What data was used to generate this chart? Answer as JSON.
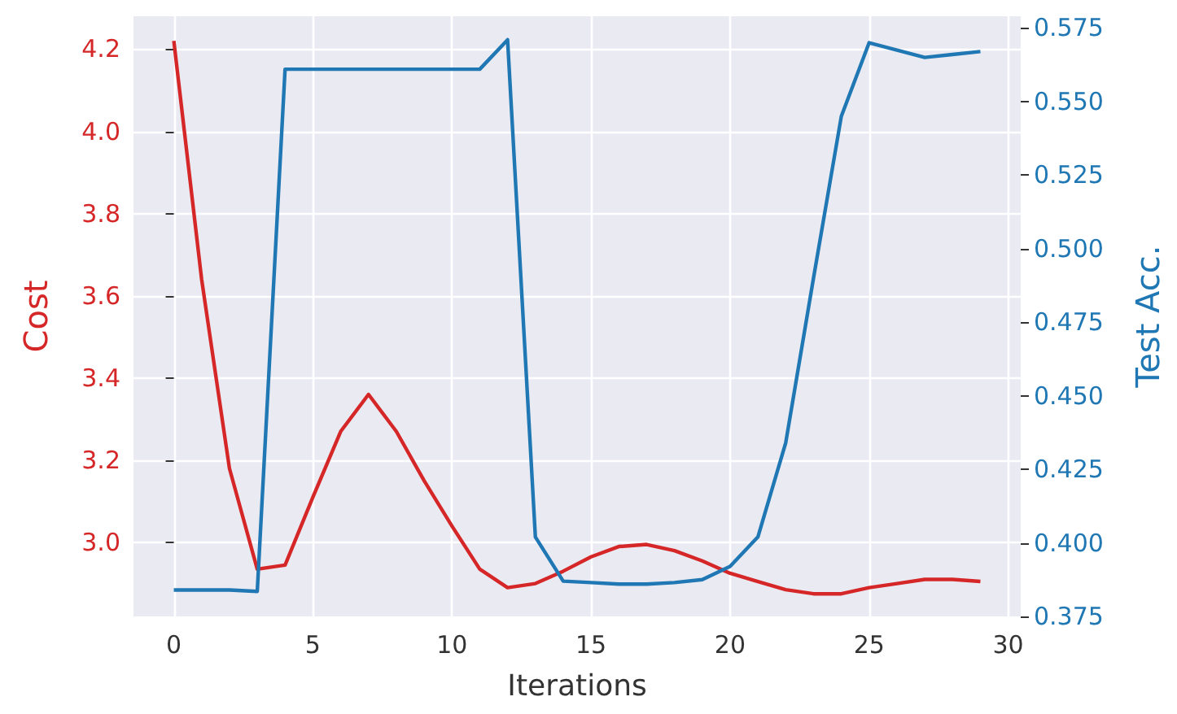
{
  "chart_data": {
    "type": "line",
    "xlabel": "Iterations",
    "ylabel": "Cost",
    "y2label": "Test Acc.",
    "x": [
      0,
      1,
      2,
      3,
      4,
      5,
      6,
      7,
      8,
      9,
      10,
      11,
      12,
      13,
      14,
      15,
      16,
      17,
      18,
      19,
      20,
      21,
      22,
      23,
      24,
      25,
      26,
      27,
      28,
      29
    ],
    "series": [
      {
        "color": "#d62728",
        "values": [
          4.22,
          3.64,
          3.18,
          2.935,
          2.945,
          3.11,
          3.27,
          3.36,
          3.27,
          3.15,
          3.04,
          2.935,
          2.89,
          2.9,
          2.93,
          2.965,
          2.99,
          2.995,
          2.98,
          2.955,
          2.925,
          2.905,
          2.885,
          2.875,
          2.875,
          2.89,
          2.9,
          2.91,
          2.91,
          2.905
        ]
      },
      {
        "color": "#1f77b4",
        "axis": "y2",
        "values": [
          0.384,
          0.384,
          0.384,
          0.3835,
          0.561,
          0.561,
          0.561,
          0.561,
          0.561,
          0.561,
          0.561,
          0.561,
          0.571,
          0.402,
          0.387,
          0.3865,
          0.386,
          0.386,
          0.3865,
          0.3875,
          0.392,
          0.402,
          0.434,
          0.49,
          0.545,
          0.57,
          0.5675,
          0.565,
          0.566,
          0.567
        ]
      }
    ],
    "xlim": [
      -1.45,
      30.45
    ],
    "xticks": [
      0,
      5,
      10,
      15,
      20,
      25,
      30
    ],
    "ylim": [
      2.82,
      4.28
    ],
    "yticks": [
      {
        "value": 3,
        "label": "3.0"
      },
      3.2,
      3.4,
      3.6,
      3.8,
      {
        "value": 4,
        "label": "4.0"
      },
      4.2
    ],
    "y2lim": [
      0.375,
      0.579
    ],
    "y2ticks": [
      0.375,
      {
        "value": 0.4,
        "label": "0.400"
      },
      0.425,
      {
        "value": 0.45,
        "label": "0.450"
      },
      0.475,
      {
        "value": 0.5,
        "label": "0.500"
      },
      0.525,
      {
        "value": 0.55,
        "label": "0.550"
      },
      0.575
    ],
    "grid": true
  }
}
